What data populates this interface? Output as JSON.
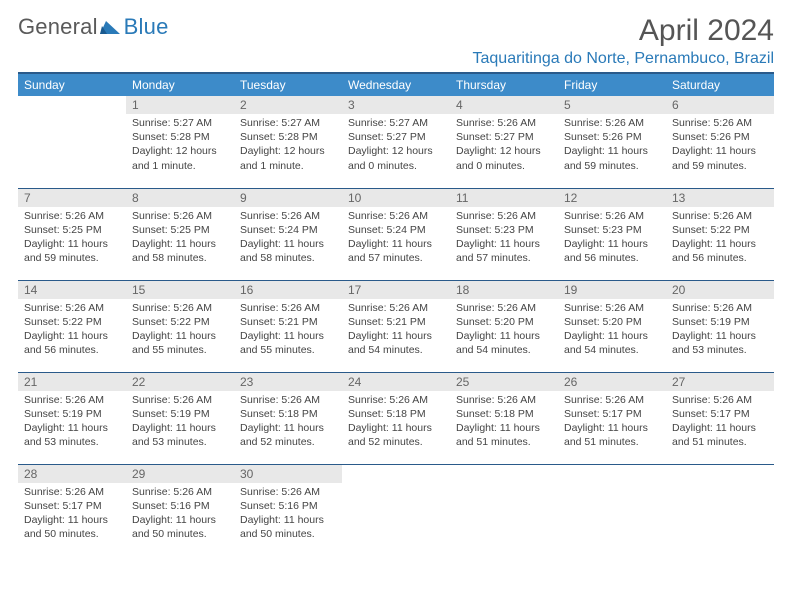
{
  "logo": {
    "text_left": "General",
    "text_right": "Blue"
  },
  "header": {
    "month_title": "April 2024",
    "location": "Taquaritinga do Norte, Pernambuco, Brazil"
  },
  "colors": {
    "header_bg": "#3d8bc9",
    "header_border_top": "#2a5a8a",
    "row_divider": "#2a5a8a",
    "daynum_bg": "#e8e8e8",
    "daynum_text": "#666666",
    "body_text": "#444444",
    "title_text": "#555555",
    "location_text": "#2a7ab8",
    "logo_gray": "#5a5a5a",
    "logo_blue": "#2a7ab8",
    "page_bg": "#ffffff"
  },
  "weekdays": [
    "Sunday",
    "Monday",
    "Tuesday",
    "Wednesday",
    "Thursday",
    "Friday",
    "Saturday"
  ],
  "weeks": [
    [
      {
        "empty": true
      },
      {
        "num": "1",
        "sunrise": "Sunrise: 5:27 AM",
        "sunset": "Sunset: 5:28 PM",
        "daylight": "Daylight: 12 hours and 1 minute."
      },
      {
        "num": "2",
        "sunrise": "Sunrise: 5:27 AM",
        "sunset": "Sunset: 5:28 PM",
        "daylight": "Daylight: 12 hours and 1 minute."
      },
      {
        "num": "3",
        "sunrise": "Sunrise: 5:27 AM",
        "sunset": "Sunset: 5:27 PM",
        "daylight": "Daylight: 12 hours and 0 minutes."
      },
      {
        "num": "4",
        "sunrise": "Sunrise: 5:26 AM",
        "sunset": "Sunset: 5:27 PM",
        "daylight": "Daylight: 12 hours and 0 minutes."
      },
      {
        "num": "5",
        "sunrise": "Sunrise: 5:26 AM",
        "sunset": "Sunset: 5:26 PM",
        "daylight": "Daylight: 11 hours and 59 minutes."
      },
      {
        "num": "6",
        "sunrise": "Sunrise: 5:26 AM",
        "sunset": "Sunset: 5:26 PM",
        "daylight": "Daylight: 11 hours and 59 minutes."
      }
    ],
    [
      {
        "num": "7",
        "sunrise": "Sunrise: 5:26 AM",
        "sunset": "Sunset: 5:25 PM",
        "daylight": "Daylight: 11 hours and 59 minutes."
      },
      {
        "num": "8",
        "sunrise": "Sunrise: 5:26 AM",
        "sunset": "Sunset: 5:25 PM",
        "daylight": "Daylight: 11 hours and 58 minutes."
      },
      {
        "num": "9",
        "sunrise": "Sunrise: 5:26 AM",
        "sunset": "Sunset: 5:24 PM",
        "daylight": "Daylight: 11 hours and 58 minutes."
      },
      {
        "num": "10",
        "sunrise": "Sunrise: 5:26 AM",
        "sunset": "Sunset: 5:24 PM",
        "daylight": "Daylight: 11 hours and 57 minutes."
      },
      {
        "num": "11",
        "sunrise": "Sunrise: 5:26 AM",
        "sunset": "Sunset: 5:23 PM",
        "daylight": "Daylight: 11 hours and 57 minutes."
      },
      {
        "num": "12",
        "sunrise": "Sunrise: 5:26 AM",
        "sunset": "Sunset: 5:23 PM",
        "daylight": "Daylight: 11 hours and 56 minutes."
      },
      {
        "num": "13",
        "sunrise": "Sunrise: 5:26 AM",
        "sunset": "Sunset: 5:22 PM",
        "daylight": "Daylight: 11 hours and 56 minutes."
      }
    ],
    [
      {
        "num": "14",
        "sunrise": "Sunrise: 5:26 AM",
        "sunset": "Sunset: 5:22 PM",
        "daylight": "Daylight: 11 hours and 56 minutes."
      },
      {
        "num": "15",
        "sunrise": "Sunrise: 5:26 AM",
        "sunset": "Sunset: 5:22 PM",
        "daylight": "Daylight: 11 hours and 55 minutes."
      },
      {
        "num": "16",
        "sunrise": "Sunrise: 5:26 AM",
        "sunset": "Sunset: 5:21 PM",
        "daylight": "Daylight: 11 hours and 55 minutes."
      },
      {
        "num": "17",
        "sunrise": "Sunrise: 5:26 AM",
        "sunset": "Sunset: 5:21 PM",
        "daylight": "Daylight: 11 hours and 54 minutes."
      },
      {
        "num": "18",
        "sunrise": "Sunrise: 5:26 AM",
        "sunset": "Sunset: 5:20 PM",
        "daylight": "Daylight: 11 hours and 54 minutes."
      },
      {
        "num": "19",
        "sunrise": "Sunrise: 5:26 AM",
        "sunset": "Sunset: 5:20 PM",
        "daylight": "Daylight: 11 hours and 54 minutes."
      },
      {
        "num": "20",
        "sunrise": "Sunrise: 5:26 AM",
        "sunset": "Sunset: 5:19 PM",
        "daylight": "Daylight: 11 hours and 53 minutes."
      }
    ],
    [
      {
        "num": "21",
        "sunrise": "Sunrise: 5:26 AM",
        "sunset": "Sunset: 5:19 PM",
        "daylight": "Daylight: 11 hours and 53 minutes."
      },
      {
        "num": "22",
        "sunrise": "Sunrise: 5:26 AM",
        "sunset": "Sunset: 5:19 PM",
        "daylight": "Daylight: 11 hours and 53 minutes."
      },
      {
        "num": "23",
        "sunrise": "Sunrise: 5:26 AM",
        "sunset": "Sunset: 5:18 PM",
        "daylight": "Daylight: 11 hours and 52 minutes."
      },
      {
        "num": "24",
        "sunrise": "Sunrise: 5:26 AM",
        "sunset": "Sunset: 5:18 PM",
        "daylight": "Daylight: 11 hours and 52 minutes."
      },
      {
        "num": "25",
        "sunrise": "Sunrise: 5:26 AM",
        "sunset": "Sunset: 5:18 PM",
        "daylight": "Daylight: 11 hours and 51 minutes."
      },
      {
        "num": "26",
        "sunrise": "Sunrise: 5:26 AM",
        "sunset": "Sunset: 5:17 PM",
        "daylight": "Daylight: 11 hours and 51 minutes."
      },
      {
        "num": "27",
        "sunrise": "Sunrise: 5:26 AM",
        "sunset": "Sunset: 5:17 PM",
        "daylight": "Daylight: 11 hours and 51 minutes."
      }
    ],
    [
      {
        "num": "28",
        "sunrise": "Sunrise: 5:26 AM",
        "sunset": "Sunset: 5:17 PM",
        "daylight": "Daylight: 11 hours and 50 minutes."
      },
      {
        "num": "29",
        "sunrise": "Sunrise: 5:26 AM",
        "sunset": "Sunset: 5:16 PM",
        "daylight": "Daylight: 11 hours and 50 minutes."
      },
      {
        "num": "30",
        "sunrise": "Sunrise: 5:26 AM",
        "sunset": "Sunset: 5:16 PM",
        "daylight": "Daylight: 11 hours and 50 minutes."
      },
      {
        "empty": true
      },
      {
        "empty": true
      },
      {
        "empty": true
      },
      {
        "empty": true
      }
    ]
  ]
}
